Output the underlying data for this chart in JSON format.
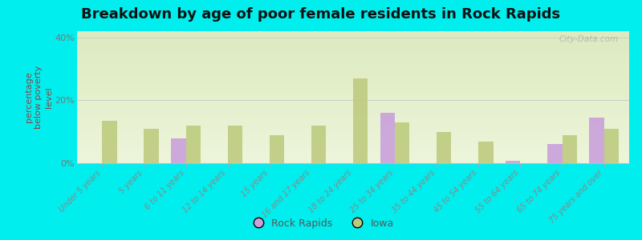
{
  "title": "Breakdown by age of poor female residents in Rock Rapids",
  "ylabel": "percentage\nbelow poverty\nlevel",
  "categories": [
    "Under 5 years",
    "5 years",
    "6 to 11 years",
    "12 to 14 years",
    "15 years",
    "16 and 17 years",
    "18 to 24 years",
    "25 to 34 years",
    "35 to 44 years",
    "45 to 54 years",
    "55 to 64 years",
    "65 to 74 years",
    "75 years and over"
  ],
  "rock_rapids": [
    0,
    0,
    8.0,
    0,
    0,
    0,
    0,
    16.0,
    0,
    0,
    0.8,
    6.0,
    14.5
  ],
  "iowa": [
    13.5,
    11.0,
    12.0,
    12.0,
    9.0,
    12.0,
    27.0,
    13.0,
    10.0,
    7.0,
    0,
    9.0,
    11.0
  ],
  "rock_rapids_color": "#c9a0dc",
  "iowa_color": "#bcc97a",
  "outer_bg": "#00eeee",
  "ylim": [
    0,
    42
  ],
  "yticks": [
    0,
    20,
    40
  ],
  "ytick_labels": [
    "0%",
    "20%",
    "40%"
  ],
  "bar_width": 0.35,
  "title_fontsize": 13,
  "ylabel_fontsize": 8,
  "tick_label_fontsize": 7,
  "legend_fontsize": 9,
  "watermark": "City-Data.com"
}
